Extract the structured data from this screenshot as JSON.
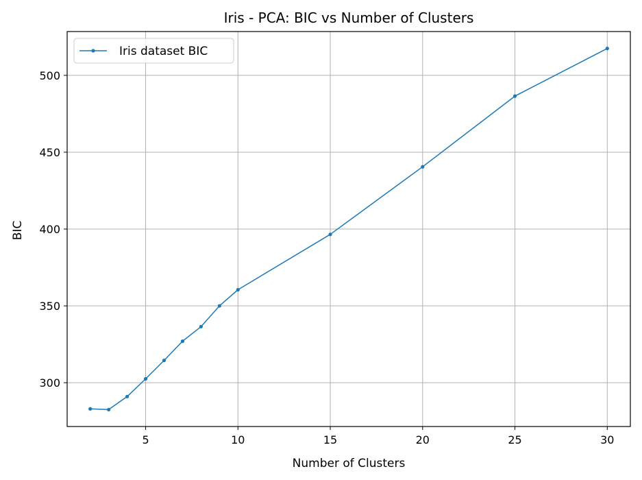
{
  "chart_data": {
    "type": "line",
    "title": "Iris - PCA: BIC vs Number of Clusters",
    "xlabel": "Number of Clusters",
    "ylabel": "BIC",
    "xlim": [
      0.75,
      31.25
    ],
    "ylim": [
      271.5,
      528.5
    ],
    "xticks": [
      5,
      10,
      15,
      20,
      25,
      30
    ],
    "yticks": [
      300,
      350,
      400,
      450,
      500
    ],
    "grid": true,
    "legend_position": "top-left",
    "line_color": "#1f77b4",
    "series": [
      {
        "name": "Iris dataset BIC",
        "x": [
          2,
          3,
          4,
          5,
          6,
          7,
          8,
          9,
          10,
          15,
          20,
          25,
          30
        ],
        "y": [
          283.0,
          282.5,
          291.0,
          302.5,
          314.5,
          327.0,
          336.5,
          350.0,
          360.5,
          396.5,
          440.5,
          486.5,
          517.5
        ]
      }
    ]
  }
}
